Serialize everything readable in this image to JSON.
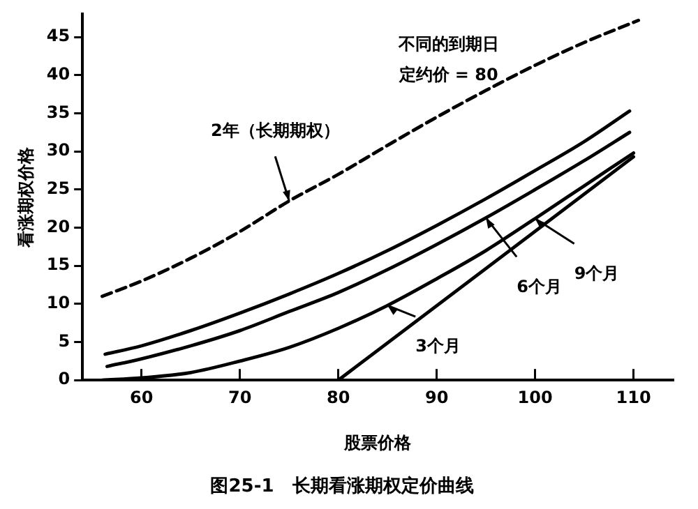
{
  "chart_data": {
    "type": "line",
    "title": "图25-1　长期看涨期权定价曲线",
    "xlabel": "股票价格",
    "ylabel": "看涨期权价格",
    "xlim": [
      54,
      114
    ],
    "xticks": [
      60,
      70,
      80,
      90,
      100,
      110
    ],
    "ylim": [
      0,
      48
    ],
    "yticks": [
      0,
      5,
      10,
      15,
      20,
      25,
      30,
      35,
      40,
      45
    ],
    "grid": false,
    "legend": false,
    "marker": "none",
    "series": [
      {
        "color": "#000000",
        "line_style": "dashed",
        "x": [
          56,
          60,
          65,
          70,
          75,
          80,
          85,
          90,
          95,
          100,
          105,
          110.5
        ],
        "values": [
          11,
          13,
          16,
          19.5,
          23.5,
          27,
          30.8,
          34.5,
          38,
          41.3,
          44.3,
          47.2
        ]
      },
      {
        "color": "#000000",
        "line_style": "solid",
        "x": [
          56.3,
          60,
          65,
          70,
          75,
          80,
          85,
          90,
          95,
          100,
          105,
          109.6
        ],
        "values": [
          3.4,
          4.5,
          6.5,
          8.8,
          11.3,
          14,
          17,
          20.3,
          23.8,
          27.5,
          31.3,
          35.3
        ]
      },
      {
        "color": "#000000",
        "line_style": "solid",
        "x": [
          56.5,
          60,
          65,
          70,
          75,
          80,
          85,
          90,
          95,
          100,
          105,
          109.6
        ],
        "values": [
          1.8,
          2.8,
          4.5,
          6.5,
          9,
          11.5,
          14.5,
          17.8,
          21.3,
          25,
          28.8,
          32.5
        ]
      },
      {
        "color": "#000000",
        "line_style": "solid",
        "x": [
          56,
          60,
          65,
          70,
          75,
          80,
          85,
          90,
          95,
          100,
          105,
          110
        ],
        "values": [
          0,
          0.3,
          1,
          2.5,
          4.3,
          6.8,
          9.8,
          13.3,
          17,
          21.2,
          25.5,
          29.8
        ]
      },
      {
        "color": "#000000",
        "line_style": "solid",
        "x": [
          80,
          110
        ],
        "values": [
          0,
          29.3
        ]
      }
    ],
    "annotations": [
      "不同的到期日",
      "定约价 = 80",
      {
        "text": "2年（长期期权）",
        "x": 75,
        "y": 23.5
      },
      {
        "text": "9个月",
        "x": 100,
        "y": 21.2
      },
      {
        "text": "6个月",
        "x": 95,
        "y": 21.3
      },
      {
        "text": "3个月",
        "x": 85,
        "y": 9.8
      }
    ]
  }
}
